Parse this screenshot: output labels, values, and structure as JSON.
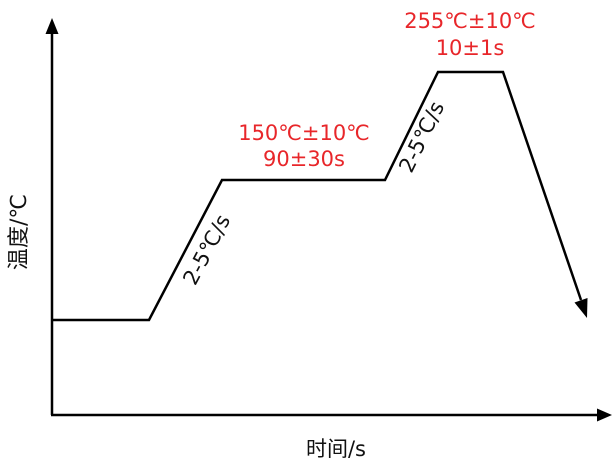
{
  "axes": {
    "y_label": "温度/℃",
    "x_label": "时间/s"
  },
  "stages": {
    "soak": {
      "temp": "150℃±10℃",
      "time": "90±30s"
    },
    "peak": {
      "temp": "255℃±10℃",
      "time": "10±1s"
    }
  },
  "ramps": {
    "first": "2-5℃/s",
    "second": "2-5℃/s"
  },
  "colors": {
    "annotation": "#e8262a",
    "line": "#000000"
  }
}
